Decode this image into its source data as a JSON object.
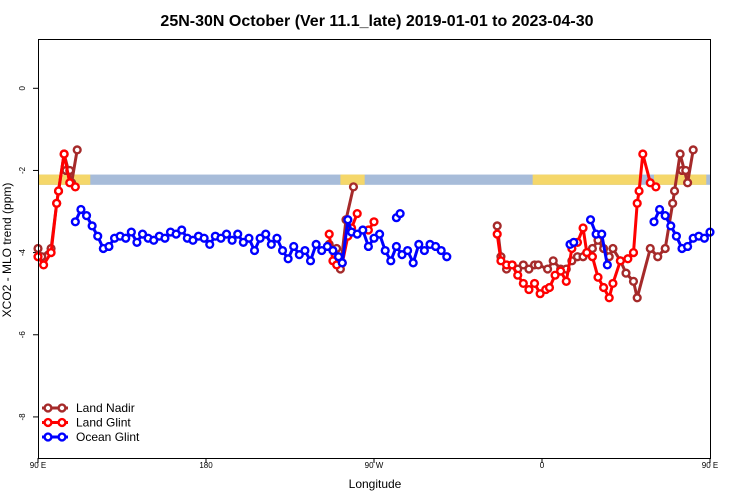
{
  "chart_data": {
    "type": "line",
    "title": "25N-30N October (Ver 11.1_late)   2019-01-01 to 2023-04-30",
    "xlabel": "Longitude",
    "ylabel": "XCO2 - MLO trend (ppm)",
    "xlim": [
      90,
      450
    ],
    "ylim": [
      -9,
      1.2
    ],
    "x_ticks": [
      {
        "value": 90,
        "label": "90 E"
      },
      {
        "value": 180,
        "label": "180"
      },
      {
        "value": 270,
        "label": "90 W"
      },
      {
        "value": 360,
        "label": "0"
      },
      {
        "value": 450,
        "label": "90 E"
      },
      {
        "value": 540,
        "label": "180"
      }
    ],
    "x_axis_note": "x values are longitude measured eastward from 0; the axis spans 90 E across the dateline and back to 180 (shown values 90-540)",
    "y_ticks": [
      0,
      -2,
      -4,
      -6,
      -8
    ],
    "grid": false,
    "legend_position": "bottom-left",
    "land_ocean_band": {
      "y_range": [
        -2.35,
        -2.1
      ],
      "ocean_color": "#a7bcd9",
      "land_color": "#f5d76a"
    },
    "series": [
      {
        "name": "Land Nadir",
        "color": "#a52a2a",
        "segments": [
          [
            [
              90,
              -3.9
            ],
            [
              92,
              -4.1
            ],
            [
              97,
              -3.9
            ],
            [
              100,
              -2.8
            ],
            [
              101,
              -2.5
            ],
            [
              104,
              -1.6
            ],
            [
              108,
              -2.3
            ],
            [
              111,
              -1.5
            ]
          ],
          [
            [
              105,
              -2.0
            ],
            [
              107,
              -2.0
            ]
          ],
          [
            [
              246,
              -3.8
            ],
            [
              250,
              -3.9
            ],
            [
              252,
              -4.4
            ],
            [
              255,
              -3.2
            ],
            [
              259,
              -2.4
            ]
          ],
          [
            [
              336,
              -3.35
            ],
            [
              338,
              -4.1
            ],
            [
              341,
              -4.4
            ],
            [
              344,
              -4.3
            ],
            [
              347,
              -4.4
            ],
            [
              350,
              -4.3
            ],
            [
              353,
              -4.4
            ],
            [
              356,
              -4.3
            ],
            [
              358,
              -4.3
            ],
            [
              363,
              -4.4
            ],
            [
              366,
              -4.2
            ],
            [
              370,
              -4.4
            ],
            [
              373,
              -4.4
            ],
            [
              376,
              -4.2
            ],
            [
              379,
              -4.1
            ],
            [
              382,
              -4.1
            ],
            [
              384,
              -4.0
            ],
            [
              387,
              -3.9
            ],
            [
              390,
              -3.7
            ],
            [
              393,
              -3.9
            ],
            [
              396,
              -4.1
            ],
            [
              398,
              -3.9
            ],
            [
              402,
              -4.2
            ],
            [
              405,
              -4.5
            ],
            [
              409,
              -4.7
            ],
            [
              411,
              -5.1
            ],
            [
              418,
              -3.9
            ],
            [
              422,
              -4.1
            ],
            [
              426,
              -3.9
            ],
            [
              430,
              -2.8
            ],
            [
              431,
              -2.5
            ],
            [
              434,
              -1.6
            ],
            [
              438,
              -2.3
            ],
            [
              441,
              -1.5
            ]
          ],
          [
            [
              435,
              -2.0
            ],
            [
              437,
              -2.0
            ]
          ]
        ]
      },
      {
        "name": "Land Glint",
        "color": "#ff0000",
        "segments": [
          [
            [
              90,
              -4.1
            ],
            [
              93,
              -4.3
            ],
            [
              97,
              -4.0
            ],
            [
              100,
              -2.8
            ],
            [
              101,
              -2.5
            ],
            [
              104,
              -1.6
            ],
            [
              107,
              -2.3
            ],
            [
              110,
              -2.4
            ]
          ],
          [
            [
              246,
              -3.55
            ],
            [
              248,
              -4.2
            ],
            [
              250,
              -4.3
            ],
            [
              253,
              -4.25
            ],
            [
              256,
              -3.6
            ],
            [
              258,
              -3.4
            ],
            [
              261,
              -3.05
            ]
          ],
          [
            [
              267,
              -3.45
            ],
            [
              270,
              -3.25
            ]
          ],
          [
            [
              336,
              -3.55
            ],
            [
              338,
              -4.2
            ],
            [
              341,
              -4.3
            ],
            [
              344,
              -4.3
            ],
            [
              347,
              -4.55
            ],
            [
              350,
              -4.75
            ],
            [
              353,
              -4.9
            ],
            [
              356,
              -4.75
            ],
            [
              359,
              -5.0
            ],
            [
              362,
              -4.9
            ],
            [
              364,
              -4.85
            ],
            [
              367,
              -4.55
            ],
            [
              370,
              -4.45
            ],
            [
              373,
              -4.7
            ],
            [
              376,
              -3.9
            ],
            [
              379,
              -3.75
            ],
            [
              382,
              -3.4
            ],
            [
              384,
              -4.0
            ],
            [
              387,
              -4.1
            ],
            [
              390,
              -4.6
            ],
            [
              393,
              -4.85
            ],
            [
              396,
              -5.1
            ],
            [
              398,
              -4.75
            ],
            [
              402,
              -4.2
            ],
            [
              406,
              -4.15
            ],
            [
              409,
              -4.0
            ],
            [
              411,
              -2.8
            ],
            [
              412,
              -2.5
            ],
            [
              414,
              -1.6
            ],
            [
              418,
              -2.3
            ],
            [
              421,
              -2.4
            ]
          ]
        ]
      },
      {
        "name": "Ocean Glint",
        "color": "#0000ff",
        "segments": [
          [
            [
              110,
              -3.25
            ],
            [
              113,
              -2.95
            ],
            [
              116,
              -3.1
            ],
            [
              119,
              -3.35
            ],
            [
              122,
              -3.6
            ],
            [
              125,
              -3.9
            ],
            [
              128,
              -3.85
            ],
            [
              131,
              -3.65
            ],
            [
              134,
              -3.6
            ],
            [
              137,
              -3.65
            ],
            [
              140,
              -3.5
            ],
            [
              143,
              -3.75
            ],
            [
              146,
              -3.55
            ],
            [
              149,
              -3.65
            ],
            [
              152,
              -3.7
            ],
            [
              155,
              -3.6
            ],
            [
              158,
              -3.65
            ],
            [
              161,
              -3.5
            ],
            [
              164,
              -3.55
            ],
            [
              167,
              -3.45
            ],
            [
              170,
              -3.65
            ],
            [
              173,
              -3.7
            ],
            [
              176,
              -3.6
            ],
            [
              179,
              -3.65
            ],
            [
              182,
              -3.8
            ],
            [
              185,
              -3.6
            ],
            [
              188,
              -3.65
            ],
            [
              191,
              -3.55
            ],
            [
              194,
              -3.7
            ],
            [
              197,
              -3.55
            ],
            [
              200,
              -3.75
            ],
            [
              203,
              -3.65
            ],
            [
              206,
              -3.95
            ],
            [
              209,
              -3.65
            ],
            [
              212,
              -3.55
            ],
            [
              215,
              -3.8
            ],
            [
              218,
              -3.65
            ],
            [
              221,
              -3.95
            ],
            [
              224,
              -4.15
            ],
            [
              227,
              -3.85
            ],
            [
              230,
              -4.05
            ],
            [
              233,
              -3.95
            ],
            [
              236,
              -4.2
            ],
            [
              239,
              -3.8
            ],
            [
              242,
              -3.95
            ],
            [
              245,
              -3.85
            ],
            [
              248,
              -3.95
            ],
            [
              251,
              -4.1
            ],
            [
              253,
              -4.25
            ],
            [
              256,
              -3.2
            ],
            [
              258,
              -3.5
            ],
            [
              261,
              -3.55
            ],
            [
              264,
              -3.45
            ],
            [
              267,
              -3.85
            ],
            [
              270,
              -3.65
            ],
            [
              273,
              -3.55
            ],
            [
              276,
              -3.95
            ],
            [
              279,
              -4.2
            ],
            [
              282,
              -3.85
            ],
            [
              285,
              -4.05
            ],
            [
              288,
              -3.95
            ],
            [
              291,
              -4.25
            ],
            [
              294,
              -3.8
            ],
            [
              297,
              -3.95
            ],
            [
              300,
              -3.8
            ],
            [
              303,
              -3.85
            ],
            [
              306,
              -3.95
            ],
            [
              309,
              -4.1
            ]
          ],
          [
            [
              282,
              -3.15
            ],
            [
              284,
              -3.05
            ]
          ],
          [
            [
              375,
              -3.8
            ],
            [
              377,
              -3.75
            ]
          ],
          [
            [
              386,
              -3.2
            ],
            [
              389,
              -3.55
            ],
            [
              392,
              -3.55
            ],
            [
              395,
              -4.3
            ]
          ],
          [
            [
              420,
              -3.25
            ],
            [
              423,
              -2.95
            ],
            [
              426,
              -3.1
            ],
            [
              429,
              -3.35
            ],
            [
              432,
              -3.6
            ],
            [
              435,
              -3.9
            ],
            [
              438,
              -3.85
            ],
            [
              441,
              -3.65
            ],
            [
              444,
              -3.6
            ],
            [
              447,
              -3.65
            ],
            [
              450,
              -3.5
            ]
          ]
        ]
      }
    ]
  },
  "legend": {
    "items": [
      {
        "label": "Land Nadir",
        "color": "#a52a2a"
      },
      {
        "label": "Land Glint",
        "color": "#ff0000"
      },
      {
        "label": "Ocean Glint",
        "color": "#0000ff"
      }
    ]
  }
}
